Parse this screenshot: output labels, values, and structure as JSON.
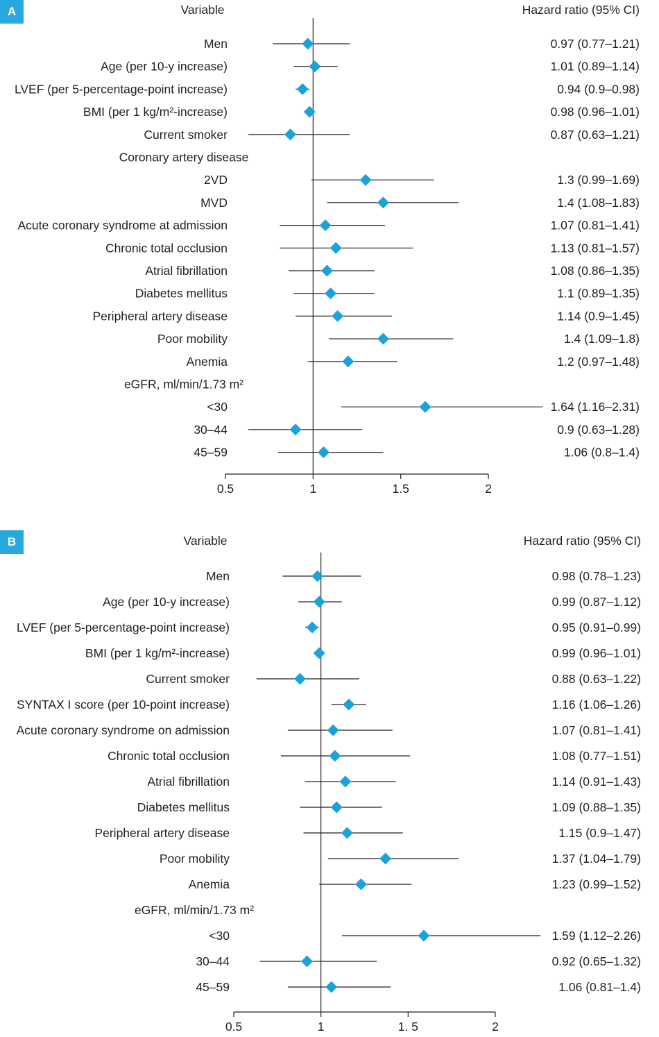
{
  "chart_data": [
    {
      "type": "forest",
      "panel_label": "A",
      "column_header_left": "Variable",
      "column_header_right": "Hazard ratio (95% CI)",
      "reference_line": 1,
      "xlim": [
        0.5,
        2
      ],
      "xticks": [
        "0.5",
        "1",
        "1.5",
        "2"
      ],
      "marker_color": "#1ba1dc",
      "rows": [
        {
          "label": "Men",
          "hr": 0.97,
          "lo": 0.77,
          "hi": 1.21,
          "ci_text": "0.97 (0.77–1.21)"
        },
        {
          "label": "Age (per 10-y increase)",
          "hr": 1.01,
          "lo": 0.89,
          "hi": 1.14,
          "ci_text": "1.01 (0.89–1.14)"
        },
        {
          "label": "LVEF (per 5-percentage-point increase)",
          "hr": 0.94,
          "lo": 0.9,
          "hi": 0.98,
          "ci_text": "0.94 (0.9–0.98)"
        },
        {
          "label": "BMI (per 1 kg/m²-increase)",
          "hr": 0.98,
          "lo": 0.96,
          "hi": 1.01,
          "ci_text": "0.98 (0.96–1.01)"
        },
        {
          "label": "Current smoker",
          "hr": 0.87,
          "lo": 0.63,
          "hi": 1.21,
          "ci_text": "0.87 (0.63–1.21)"
        },
        {
          "label": "Coronary artery disease",
          "header": true
        },
        {
          "label": "2VD",
          "hr": 1.3,
          "lo": 0.99,
          "hi": 1.69,
          "ci_text": "1.3 (0.99–1.69)"
        },
        {
          "label": "MVD",
          "hr": 1.4,
          "lo": 1.08,
          "hi": 1.83,
          "ci_text": "1.4 (1.08–1.83)"
        },
        {
          "label": "Acute coronary syndrome at admission",
          "hr": 1.07,
          "lo": 0.81,
          "hi": 1.41,
          "ci_text": "1.07 (0.81–1.41)"
        },
        {
          "label": "Chronic total occlusion",
          "hr": 1.13,
          "lo": 0.81,
          "hi": 1.57,
          "ci_text": "1.13 (0.81–1.57)"
        },
        {
          "label": "Atrial fibrillation",
          "hr": 1.08,
          "lo": 0.86,
          "hi": 1.35,
          "ci_text": "1.08 (0.86–1.35)"
        },
        {
          "label": "Diabetes mellitus",
          "hr": 1.1,
          "lo": 0.89,
          "hi": 1.35,
          "ci_text": "1.1 (0.89–1.35)"
        },
        {
          "label": "Peripheral artery disease",
          "hr": 1.14,
          "lo": 0.9,
          "hi": 1.45,
          "ci_text": "1.14 (0.9–1.45)"
        },
        {
          "label": "Poor mobility",
          "hr": 1.4,
          "lo": 1.09,
          "hi": 1.8,
          "ci_text": "1.4 (1.09–1.8)"
        },
        {
          "label": "Anemia",
          "hr": 1.2,
          "lo": 0.97,
          "hi": 1.48,
          "ci_text": "1.2 (0.97–1.48)"
        },
        {
          "label": "eGFR, ml/min/1.73 m²",
          "header": true
        },
        {
          "label": "<30",
          "hr": 1.64,
          "lo": 1.16,
          "hi": 2.31,
          "ci_text": "1.64 (1.16–2.31)"
        },
        {
          "label": "30–44",
          "hr": 0.9,
          "lo": 0.63,
          "hi": 1.28,
          "ci_text": "0.9 (0.63–1.28)"
        },
        {
          "label": "45–59",
          "hr": 1.06,
          "lo": 0.8,
          "hi": 1.4,
          "ci_text": "1.06 (0.8–1.4)"
        }
      ]
    },
    {
      "type": "forest",
      "panel_label": "B",
      "column_header_left": "Variable",
      "column_header_right": "Hazard ratio (95% CI)",
      "reference_line": 1,
      "xlim": [
        0.5,
        2
      ],
      "xticks": [
        "0.5",
        "1",
        "1. 5",
        "2"
      ],
      "marker_color": "#1ba1dc",
      "rows": [
        {
          "label": "Men",
          "hr": 0.98,
          "lo": 0.78,
          "hi": 1.23,
          "ci_text": "0.98 (0.78–1.23)"
        },
        {
          "label": "Age (per 10-y increase)",
          "hr": 0.99,
          "lo": 0.87,
          "hi": 1.12,
          "ci_text": "0.99 (0.87–1.12)"
        },
        {
          "label": "LVEF (per 5-percentage-point increase)",
          "hr": 0.95,
          "lo": 0.91,
          "hi": 0.99,
          "ci_text": "0.95 (0.91–0.99)"
        },
        {
          "label": "BMI (per 1 kg/m²-increase)",
          "hr": 0.99,
          "lo": 0.96,
          "hi": 1.01,
          "ci_text": "0.99 (0.96–1.01)"
        },
        {
          "label": "Current smoker",
          "hr": 0.88,
          "lo": 0.63,
          "hi": 1.22,
          "ci_text": "0.88 (0.63–1.22)"
        },
        {
          "label": "SYNTAX I score (per 10-point increase)",
          "hr": 1.16,
          "lo": 1.06,
          "hi": 1.26,
          "ci_text": "1.16 (1.06–1.26)"
        },
        {
          "label": "Acute coronary syndrome on admission",
          "hr": 1.07,
          "lo": 0.81,
          "hi": 1.41,
          "ci_text": "1.07 (0.81–1.41)"
        },
        {
          "label": "Chronic total occlusion",
          "hr": 1.08,
          "lo": 0.77,
          "hi": 1.51,
          "ci_text": "1.08 (0.77–1.51)"
        },
        {
          "label": "Atrial fibrillation",
          "hr": 1.14,
          "lo": 0.91,
          "hi": 1.43,
          "ci_text": "1.14 (0.91–1.43)"
        },
        {
          "label": "Diabetes mellitus",
          "hr": 1.09,
          "lo": 0.88,
          "hi": 1.35,
          "ci_text": "1.09 (0.88–1.35)"
        },
        {
          "label": "Peripheral artery disease",
          "hr": 1.15,
          "lo": 0.9,
          "hi": 1.47,
          "ci_text": "1.15 (0.9–1.47)"
        },
        {
          "label": "Poor mobility",
          "hr": 1.37,
          "lo": 1.04,
          "hi": 1.79,
          "ci_text": "1.37 (1.04–1.79)"
        },
        {
          "label": "Anemia",
          "hr": 1.23,
          "lo": 0.99,
          "hi": 1.52,
          "ci_text": "1.23 (0.99–1.52)"
        },
        {
          "label": "eGFR, ml/min/1.73 m²",
          "header": true
        },
        {
          "label": "<30",
          "hr": 1.59,
          "lo": 1.12,
          "hi": 2.26,
          "ci_text": "1.59 (1.12–2.26)"
        },
        {
          "label": "30–44",
          "hr": 0.92,
          "lo": 0.65,
          "hi": 1.32,
          "ci_text": "0.92 (0.65–1.32)"
        },
        {
          "label": "45–59",
          "hr": 1.06,
          "lo": 0.81,
          "hi": 1.4,
          "ci_text": "1.06 (0.81–1.4)"
        }
      ]
    }
  ]
}
